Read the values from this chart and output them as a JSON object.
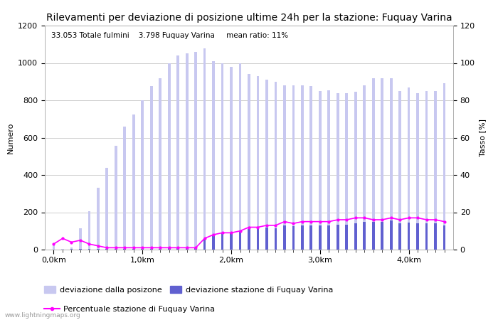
{
  "title": "Rilevamenti per deviazione di posizione ultime 24h per la stazione: Fuquay Varina",
  "subtitle": "33.053 Totale fulmini    3.798 Fuquay Varina     mean ratio: 11%",
  "ylabel_left": "Numero",
  "ylabel_right": "Tasso [%]",
  "watermark": "www.lightningmaps.org",
  "ylim_left": [
    0,
    1200
  ],
  "ylim_right": [
    0,
    120
  ],
  "xtick_labels": [
    "0,0km",
    "1,0km",
    "2,0km",
    "3,0km",
    "4,0km"
  ],
  "xtick_positions": [
    0,
    10,
    20,
    30,
    40
  ],
  "legend_labels": [
    "deviazione dalla posizone",
    "deviazione stazione di Fuquay Varina",
    "Percentuale stazione di Fuquay Varina"
  ],
  "bar_total": [
    25,
    5,
    10,
    115,
    205,
    330,
    440,
    555,
    660,
    725,
    800,
    875,
    920,
    1000,
    1040,
    1050,
    1060,
    1080,
    1010,
    1000,
    980,
    1000,
    940,
    930,
    910,
    900,
    880,
    880,
    880,
    875,
    850,
    855,
    840,
    840,
    845,
    880,
    920,
    920,
    920,
    850,
    870,
    840,
    850,
    850,
    890
  ],
  "bar_station": [
    0,
    0,
    5,
    5,
    5,
    5,
    5,
    5,
    5,
    5,
    5,
    5,
    5,
    10,
    10,
    10,
    10,
    60,
    80,
    90,
    90,
    100,
    110,
    115,
    120,
    115,
    130,
    125,
    130,
    130,
    130,
    130,
    135,
    135,
    140,
    150,
    150,
    150,
    155,
    140,
    145,
    140,
    140,
    140,
    130
  ],
  "line_pct": [
    3,
    6,
    4,
    5,
    3,
    2,
    1,
    1,
    1,
    1,
    1,
    1,
    1,
    1,
    1,
    1,
    1,
    6,
    8,
    9,
    9,
    10,
    12,
    12,
    13,
    13,
    15,
    14,
    15,
    15,
    15,
    15,
    16,
    16,
    17,
    17,
    16,
    16,
    17,
    16,
    17,
    17,
    16,
    16,
    15
  ],
  "color_bar_total": "#c8c8f0",
  "color_bar_station": "#6060d0",
  "color_line_pct": "#ff00ff",
  "background_color": "#ffffff",
  "grid_color": "#bbbbbb",
  "title_fontsize": 10,
  "axis_fontsize": 8,
  "tick_fontsize": 8,
  "bar_width": 0.3
}
